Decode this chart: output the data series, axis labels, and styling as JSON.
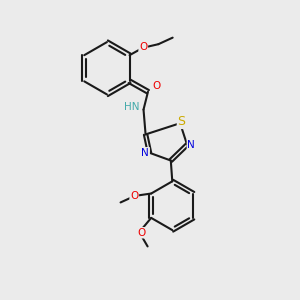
{
  "bg": "#ebebeb",
  "bc": "#1a1a1a",
  "atom_colors": {
    "N": "#0000dd",
    "O": "#ee0000",
    "S": "#ccaa00",
    "HN": "#44aaaa"
  },
  "fs": 7.5,
  "lw": 1.5,
  "figsize": [
    3.0,
    3.0
  ],
  "dpi": 100
}
